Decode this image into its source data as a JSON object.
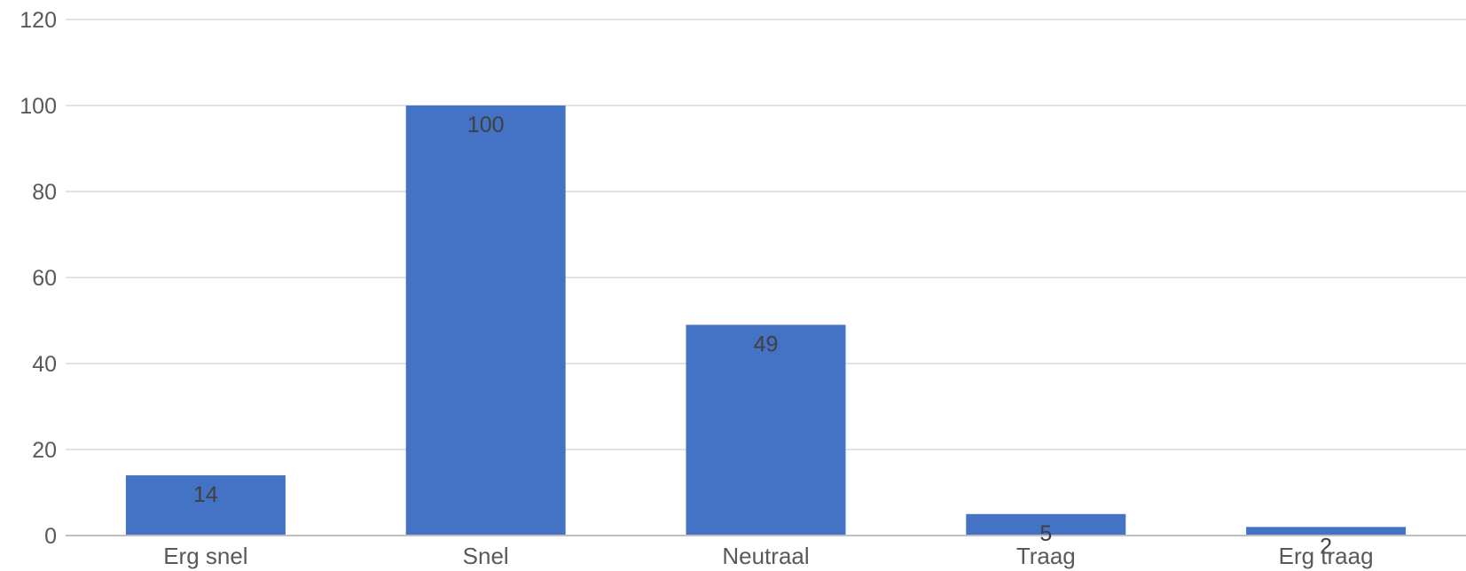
{
  "chart_data": {
    "type": "bar",
    "categories": [
      "Erg snel",
      "Snel",
      "Neutraal",
      "Traag",
      "Erg traag"
    ],
    "values": [
      14,
      100,
      49,
      5,
      2
    ],
    "data_labels": [
      "14",
      "100",
      "49",
      "5",
      "2"
    ],
    "y_ticks": [
      "0",
      "20",
      "40",
      "60",
      "80",
      "100",
      "120"
    ],
    "ylim": [
      0,
      120
    ],
    "grid": true,
    "legend": false,
    "colors": {
      "bar": "#4472C4",
      "grid": "#D9D9D9",
      "axis": "#BFBFBF"
    }
  }
}
